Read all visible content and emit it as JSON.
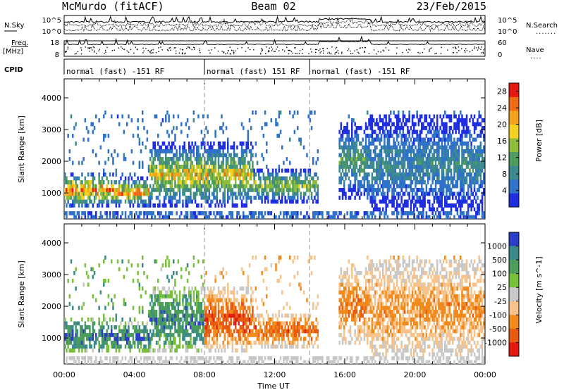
{
  "header": {
    "radar": "McMurdo (fitACF)",
    "beam": "Beam 02",
    "date": "23/Feb/2015"
  },
  "top_panels": {
    "nsky_label": "N.Sky",
    "nsky_ticks": [
      "10^5",
      "10^0"
    ],
    "nsearch_label": "N.Search",
    "nsearch_ticks": [
      "10^5",
      "10^0"
    ],
    "freq_label": "Freq.",
    "freq_unit": "[MHz]",
    "freq_ticks": [
      "18",
      "8"
    ],
    "nave_label": "Nave",
    "nave_ticks": [
      "60",
      "0"
    ],
    "cpid_label": "CPID",
    "cpid_segments": [
      {
        "label": "normal (fast) -151 RF",
        "start_hour": 0
      },
      {
        "label": "normal (fast) 151 RF",
        "start_hour": 8
      },
      {
        "label": "normal (fast) -151 RF",
        "start_hour": 14
      }
    ]
  },
  "chart_data": [
    {
      "type": "heatmap",
      "quantity": "Power",
      "ylabel": "Slant Range [km]",
      "xlabel": "Time UT",
      "x_range_hours": [
        0,
        24
      ],
      "y_range_km": [
        180,
        4600
      ],
      "yticks": [
        1000,
        2000,
        3000,
        4000
      ],
      "colorbar": {
        "label": "Power [dB]",
        "range": [
          0,
          30
        ],
        "ticks": [
          4,
          8,
          12,
          16,
          20,
          24,
          28
        ],
        "colors": [
          "#1f2fe0",
          "#2f72c8",
          "#3d8a8e",
          "#4f9a5e",
          "#8dbd3a",
          "#f2d21e",
          "#f4a21a",
          "#ef6a14",
          "#e51a10"
        ]
      },
      "echo_events": [
        {
          "start": 0.0,
          "end": 2.8,
          "low": 500,
          "high": 1700,
          "peak": 26
        },
        {
          "start": 2.8,
          "end": 4.8,
          "low": 550,
          "high": 1500,
          "peak": 26
        },
        {
          "start": 4.8,
          "end": 10.8,
          "low": 550,
          "high": 2600,
          "peak": 22
        },
        {
          "start": 10.8,
          "end": 14.5,
          "low": 700,
          "high": 1800,
          "peak": 18
        },
        {
          "start": 15.6,
          "end": 17.2,
          "low": 800,
          "high": 3200,
          "peak": 14
        },
        {
          "start": 17.2,
          "end": 24.0,
          "low": 300,
          "high": 3500,
          "peak": 10
        }
      ]
    },
    {
      "type": "heatmap",
      "quantity": "Velocity",
      "ylabel": "Slant Range [km]",
      "xlabel": "Time UT",
      "x_range_hours": [
        0,
        24
      ],
      "y_range_km": [
        180,
        4600
      ],
      "yticks": [
        1000,
        2000,
        3000,
        4000
      ],
      "xticks": [
        "00:00",
        "04:00",
        "08:00",
        "12:00",
        "16:00",
        "20:00",
        "00:00"
      ],
      "colorbar": {
        "label": "Velocity [m s^-1]",
        "tick_values": [
          "1000",
          "500",
          "100",
          "25",
          "-25",
          "-100",
          "-500",
          "-1000"
        ],
        "colors": [
          "#2a3ec8",
          "#3a8a8a",
          "#4c9c5c",
          "#78c03a",
          "#c8c8c8",
          "#f7c38a",
          "#f08a1c",
          "#e85a12",
          "#e21a12"
        ]
      },
      "velocity_regimes": [
        {
          "start": 0.0,
          "end": 7.9,
          "sign": "positive"
        },
        {
          "start": 7.9,
          "end": 24.0,
          "sign": "negative"
        }
      ]
    }
  ]
}
